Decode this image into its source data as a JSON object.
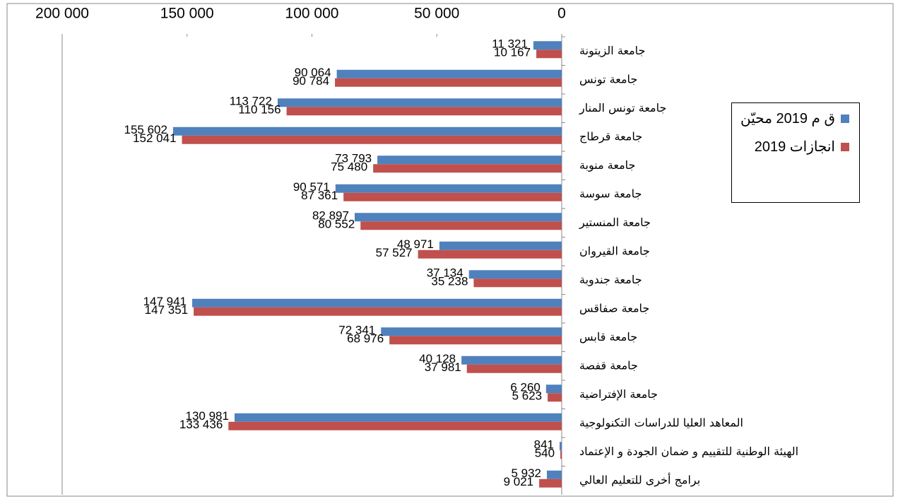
{
  "chart_data": {
    "type": "hbar",
    "categories": [
      "جامعة الزيتونة",
      "جامعة تونس",
      "جامعة تونس المنار",
      "جامعة قرطاج",
      "جامعة منوبة",
      "جامعة سوسة",
      "جامعة المنستير",
      "جامعة القيروان",
      "جامعة جندوبة",
      "جامعة صفاقس",
      "جامعة قابس",
      "جامعة قفصة",
      "جامعة الإفتراضية",
      "المعاهد العليا للدراسات التكنولوجية",
      "الهيئة الوطنية للتقييم و ضمان الجودة و الإعتماد",
      "برامج أخرى للتعليم العالي"
    ],
    "series": [
      {
        "name": "ق م 2019 محيّن",
        "color": "#4f81bd",
        "values": [
          11321,
          90064,
          113722,
          155602,
          73793,
          90571,
          82897,
          48971,
          37134,
          147941,
          72341,
          40128,
          6260,
          130981,
          841,
          5932
        ],
        "value_labels": [
          "11 321",
          "90 064",
          "113 722",
          "155 602",
          "73 793",
          "90 571",
          "82 897",
          "48 971",
          "37 134",
          "147 941",
          "72 341",
          "40 128",
          "6 260",
          "130 981",
          "841",
          "5 932"
        ]
      },
      {
        "name": "انجازات 2019",
        "color": "#c0504d",
        "values": [
          10167,
          90784,
          110156,
          152041,
          75480,
          87361,
          80552,
          57527,
          35238,
          147351,
          68976,
          37981,
          5623,
          133436,
          540,
          9021
        ],
        "value_labels": [
          "10 167",
          "90 784",
          "110 156",
          "152 041",
          "75 480",
          "87 361",
          "80 552",
          "57 527",
          "35 238",
          "147 351",
          "68 976",
          "37 981",
          "5 623",
          "133 436",
          "540",
          "9 021"
        ]
      }
    ],
    "xlim": [
      0,
      200000
    ],
    "xticks": [
      0,
      {
        "value": 50000,
        "label": "50 000"
      },
      {
        "value": 100000,
        "label": "100 000"
      },
      {
        "value": 150000,
        "label": "150 000"
      },
      {
        "value": 200000,
        "label": "200 000"
      }
    ],
    "x_reversed": true,
    "legend": "right"
  }
}
